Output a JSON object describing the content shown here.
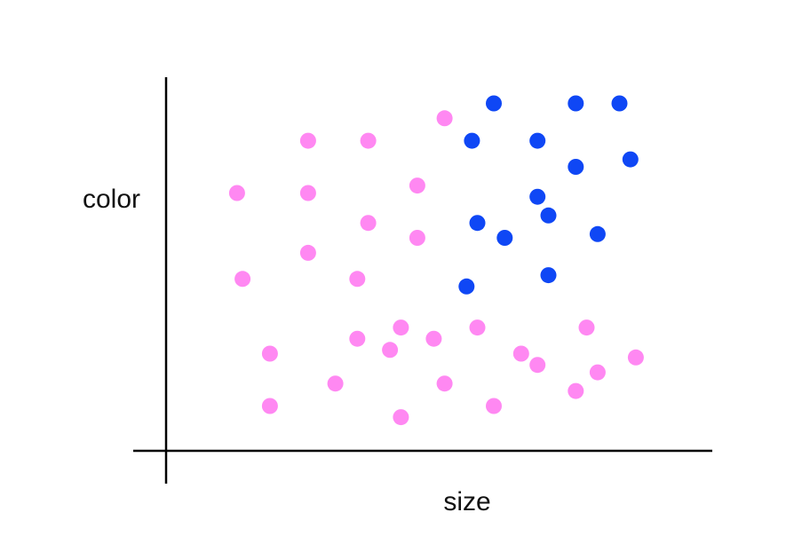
{
  "chart_data": {
    "type": "scatter",
    "xlabel": "size",
    "ylabel": "color",
    "xlim": [
      0,
      100
    ],
    "ylim": [
      0,
      100
    ],
    "grid": false,
    "legend": "none",
    "series": [
      {
        "color": "#ff88f2",
        "points": [
          [
            51,
            89
          ],
          [
            26,
            83
          ],
          [
            37,
            83
          ],
          [
            46,
            71
          ],
          [
            13,
            69
          ],
          [
            26,
            69
          ],
          [
            37,
            61
          ],
          [
            46,
            57
          ],
          [
            26,
            53
          ],
          [
            14,
            46
          ],
          [
            35,
            46
          ],
          [
            43,
            33
          ],
          [
            57,
            33
          ],
          [
            35,
            30
          ],
          [
            49,
            30
          ],
          [
            19,
            26
          ],
          [
            41,
            27
          ],
          [
            65,
            26
          ],
          [
            77,
            33
          ],
          [
            68,
            23
          ],
          [
            86,
            25
          ],
          [
            79,
            21
          ],
          [
            31,
            18
          ],
          [
            51,
            18
          ],
          [
            75,
            16
          ],
          [
            19,
            12
          ],
          [
            43,
            9
          ],
          [
            60,
            12
          ]
        ]
      },
      {
        "color": "#0f47f5",
        "points": [
          [
            60,
            93
          ],
          [
            75,
            93
          ],
          [
            83,
            93
          ],
          [
            56,
            83
          ],
          [
            68,
            83
          ],
          [
            75,
            76
          ],
          [
            85,
            78
          ],
          [
            68,
            68
          ],
          [
            70,
            63
          ],
          [
            57,
            61
          ],
          [
            62,
            57
          ],
          [
            79,
            58
          ],
          [
            55,
            44
          ],
          [
            70,
            47
          ]
        ]
      }
    ]
  }
}
